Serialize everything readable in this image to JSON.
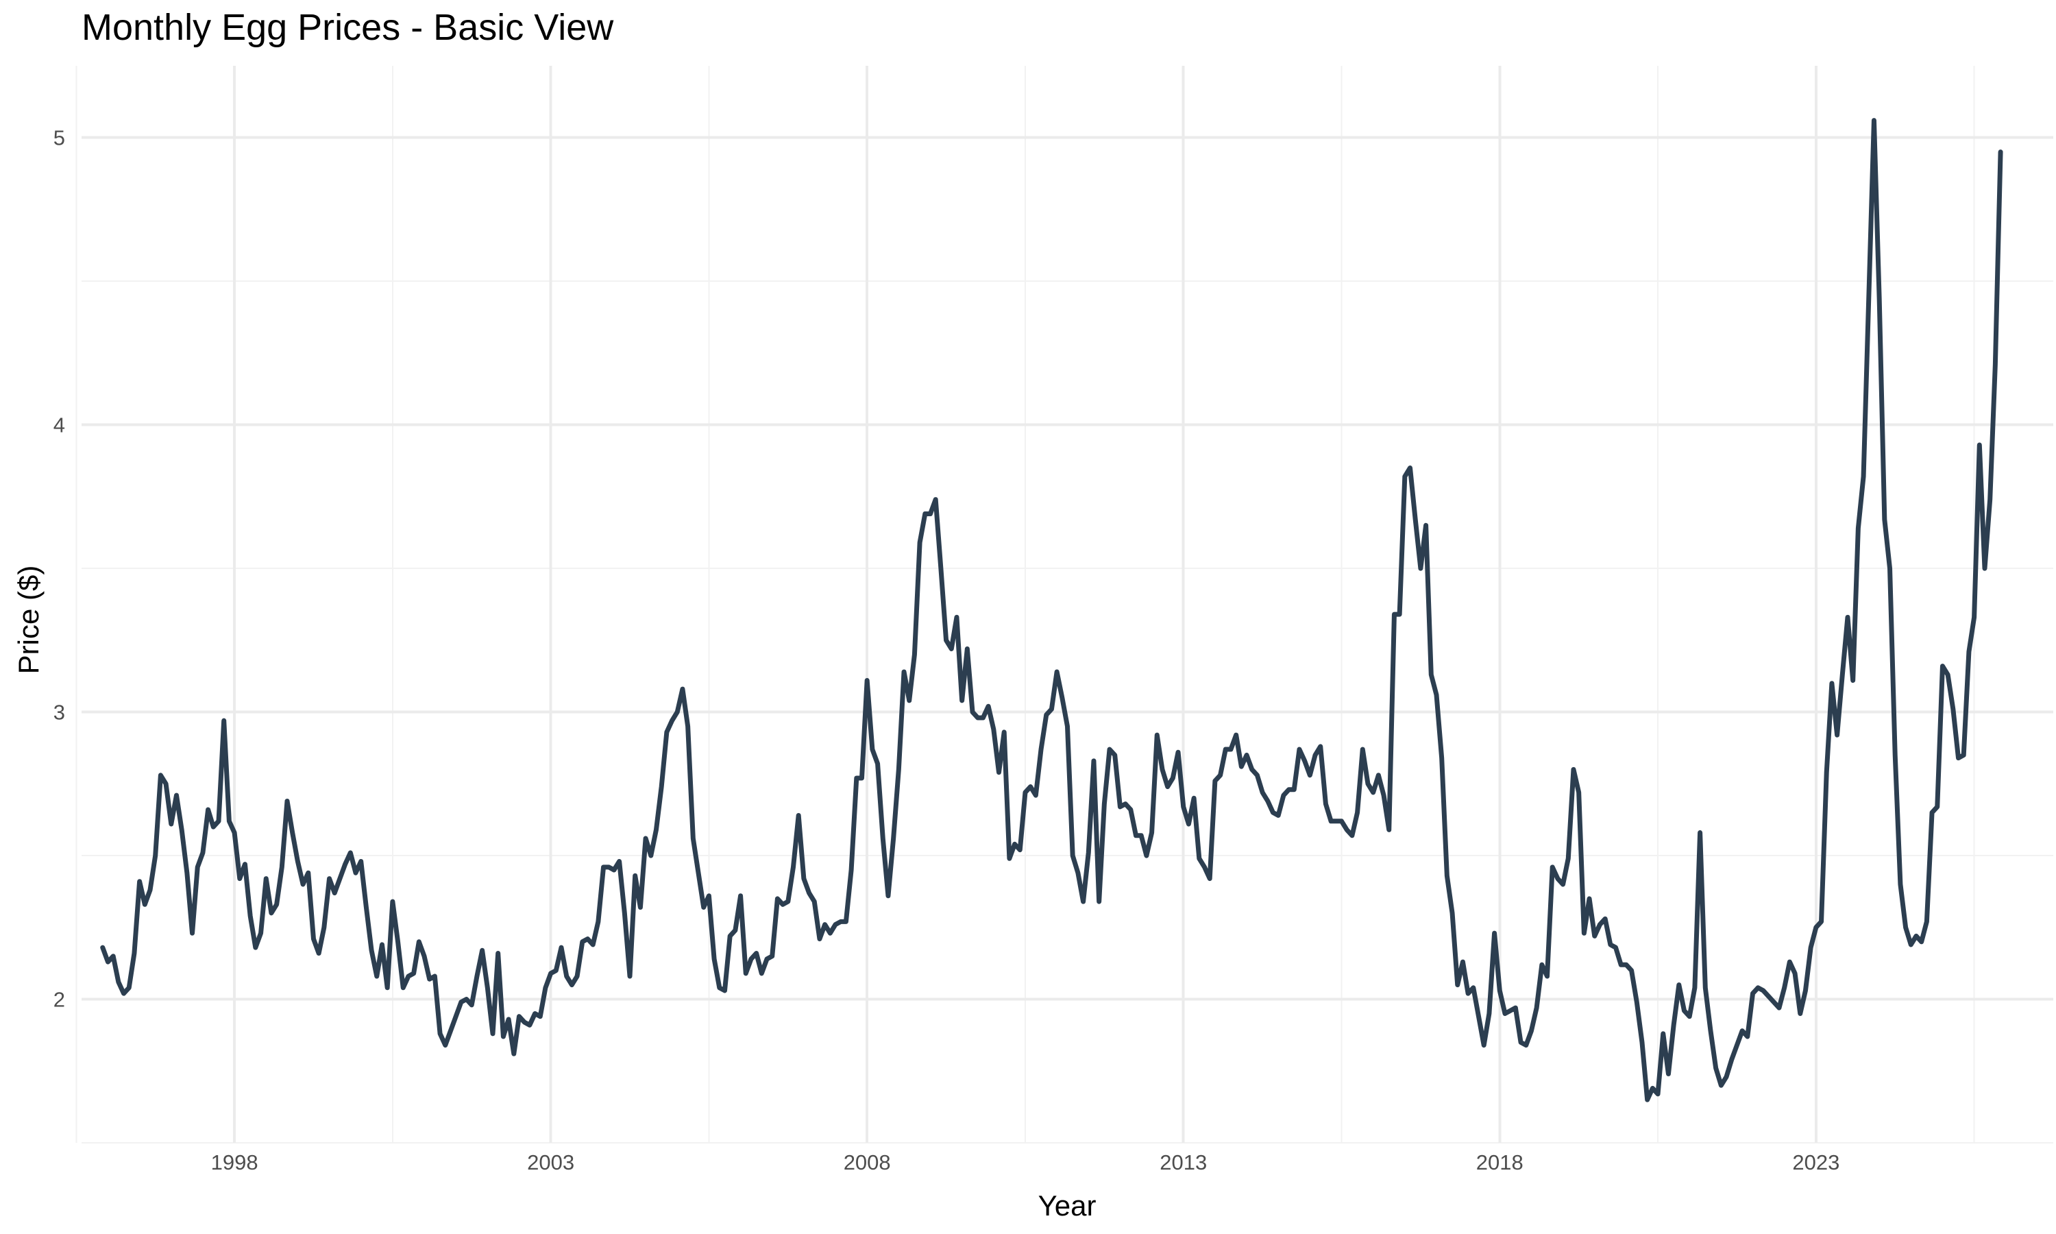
{
  "chart_data": {
    "type": "line",
    "title": "Monthly Egg Prices - Basic View",
    "xlabel": "Year",
    "ylabel": "Price ($)",
    "x_major_ticks": [
      "1998",
      "2003",
      "2008",
      "2013",
      "2018",
      "2023"
    ],
    "y_major_ticks": [
      "2",
      "3",
      "4",
      "5"
    ],
    "xlim": [
      "1995-08-01",
      "2026-10-01"
    ],
    "ylim": [
      1.5,
      5.25
    ],
    "grid": true,
    "line_color": "#2c3e50",
    "series": [
      {
        "start": "1995-12",
        "frequency": "monthly",
        "values": [
          2.18,
          2.13,
          2.15,
          2.06,
          2.02,
          2.04,
          2.16,
          2.41,
          2.33,
          2.38,
          2.5,
          2.78,
          2.75,
          2.61,
          2.71,
          2.59,
          2.44,
          2.23,
          2.46,
          2.51,
          2.66,
          2.6,
          2.62,
          2.97,
          2.62,
          2.58,
          2.42,
          2.47,
          2.29,
          2.18,
          2.23,
          2.42,
          2.3,
          2.33,
          2.46,
          2.69,
          2.58,
          2.48,
          2.4,
          2.44,
          2.21,
          2.16,
          2.25,
          2.42,
          2.37,
          2.42,
          2.47,
          2.51,
          2.44,
          2.48,
          2.32,
          2.17,
          2.08,
          2.19,
          2.04,
          2.34,
          2.2,
          2.04,
          2.08,
          2.09,
          2.2,
          2.15,
          2.07,
          2.08,
          1.88,
          1.84,
          1.89,
          1.94,
          1.99,
          2.0,
          1.98,
          2.08,
          2.17,
          2.04,
          1.88,
          2.16,
          1.87,
          1.93,
          1.81,
          1.94,
          1.92,
          1.91,
          1.95,
          1.94,
          2.04,
          2.09,
          2.1,
          2.18,
          2.08,
          2.05,
          2.08,
          2.2,
          2.21,
          2.19,
          2.27,
          2.46,
          2.46,
          2.45,
          2.48,
          2.3,
          2.08,
          2.43,
          2.32,
          2.56,
          2.5,
          2.59,
          2.74,
          2.93,
          2.97,
          3.0,
          3.08,
          2.95,
          2.56,
          2.44,
          2.32,
          2.36,
          2.14,
          2.04,
          2.03,
          2.22,
          2.24,
          2.36,
          2.09,
          2.14,
          2.16,
          2.09,
          2.14,
          2.15,
          2.35,
          2.33,
          2.34,
          2.46,
          2.64,
          2.42,
          2.37,
          2.34,
          2.21,
          2.26,
          2.23,
          2.26,
          2.27,
          2.27,
          2.45,
          2.77,
          2.77,
          3.11,
          2.87,
          2.82,
          2.56,
          2.36,
          2.56,
          2.8,
          3.14,
          3.04,
          3.2,
          3.59,
          3.69,
          3.69,
          3.74,
          3.5,
          3.25,
          3.22,
          3.33,
          3.04,
          3.22,
          3.0,
          2.98,
          2.98,
          3.02,
          2.94,
          2.79,
          2.93,
          2.49,
          2.54,
          2.52,
          2.72,
          2.74,
          2.71,
          2.87,
          2.99,
          3.01,
          3.14,
          3.05,
          2.95,
          2.5,
          2.44,
          2.34,
          2.51,
          2.83,
          2.34,
          2.68,
          2.87,
          2.85,
          2.67,
          2.68,
          2.66,
          2.57,
          2.57,
          2.5,
          2.58,
          2.92,
          2.8,
          2.74,
          2.77,
          2.86,
          2.67,
          2.61,
          2.7,
          2.49,
          2.46,
          2.42,
          2.76,
          2.78,
          2.87,
          2.87,
          2.92,
          2.81,
          2.85,
          2.8,
          2.78,
          2.72,
          2.69,
          2.65,
          2.64,
          2.71,
          2.73,
          2.73,
          2.87,
          2.83,
          2.78,
          2.85,
          2.88,
          2.68,
          2.62,
          2.62,
          2.62,
          2.59,
          2.57,
          2.65,
          2.87,
          2.75,
          2.72,
          2.78,
          2.71,
          2.59,
          3.34,
          3.34,
          3.82,
          3.85,
          3.67,
          3.5,
          3.65,
          3.13,
          3.06,
          2.84,
          2.43,
          2.3,
          2.05,
          2.13,
          2.02,
          2.04,
          1.94,
          1.84,
          1.95,
          2.23,
          2.03,
          1.95,
          1.96,
          1.97,
          1.85,
          1.84,
          1.89,
          1.97,
          2.12,
          2.08,
          2.46,
          2.42,
          2.4,
          2.49,
          2.8,
          2.72,
          2.23,
          2.35,
          2.22,
          2.26,
          2.28,
          2.19,
          2.18,
          2.12,
          2.12,
          2.1,
          1.99,
          1.85,
          1.65,
          1.69,
          1.67,
          1.88,
          1.74,
          1.91,
          2.05,
          1.96,
          1.94,
          2.04,
          2.58,
          2.04,
          1.89,
          1.76,
          1.7,
          1.73,
          1.79,
          1.84,
          1.89,
          1.87,
          2.02,
          2.04,
          2.03,
          2.01,
          1.99,
          1.97,
          2.04,
          2.13,
          2.09,
          1.95,
          2.03,
          2.18,
          2.25,
          2.27,
          2.79,
          3.1,
          2.92,
          3.13,
          3.33,
          3.11,
          3.64,
          3.82,
          4.44,
          5.06,
          4.44,
          3.67,
          3.5,
          2.85,
          2.4,
          2.25,
          2.19,
          2.22,
          2.2,
          2.27,
          2.65,
          2.67,
          3.16,
          3.13,
          3.01,
          2.84,
          2.85,
          3.21,
          3.33,
          3.93,
          3.5,
          3.74,
          4.21,
          4.95
        ]
      }
    ]
  }
}
